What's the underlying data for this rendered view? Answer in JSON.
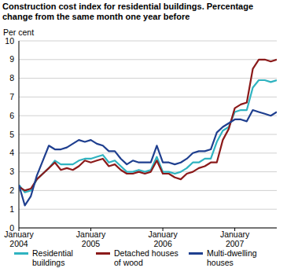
{
  "chart_data": {
    "type": "line",
    "title": "Construction cost index for residential buildings. Percentage change from the same month one year before",
    "y_label": "Per cent",
    "categories": [
      "January 2004",
      null,
      null,
      null,
      null,
      null,
      null,
      null,
      null,
      null,
      null,
      null,
      "January 2005",
      null,
      null,
      null,
      null,
      null,
      null,
      null,
      null,
      null,
      null,
      null,
      "January 2006",
      null,
      null,
      null,
      null,
      null,
      null,
      null,
      null,
      null,
      null,
      null,
      "January 2007",
      null,
      null,
      null,
      null,
      null,
      null,
      null
    ],
    "series": [
      {
        "name": "Residential buildings",
        "color": "#2fb3c0",
        "values": [
          2.3,
          1.9,
          2.0,
          2.6,
          2.9,
          3.2,
          3.6,
          3.4,
          3.4,
          3.4,
          3.6,
          3.7,
          3.7,
          3.8,
          3.9,
          3.5,
          3.6,
          3.3,
          3.0,
          3.0,
          3.1,
          3.0,
          3.1,
          3.8,
          3.0,
          3.0,
          2.9,
          3.0,
          3.2,
          3.5,
          3.5,
          3.7,
          3.7,
          4.6,
          5.2,
          5.4,
          6.2,
          6.3,
          6.3,
          7.5,
          7.9,
          7.9,
          7.8,
          7.9
        ]
      },
      {
        "name": "Detached houses of wood",
        "color": "#8b1a1a",
        "values": [
          2.2,
          2.0,
          2.1,
          2.6,
          2.9,
          3.2,
          3.5,
          3.1,
          3.2,
          3.1,
          3.3,
          3.6,
          3.5,
          3.6,
          3.7,
          3.3,
          3.4,
          3.1,
          2.9,
          2.9,
          3.0,
          2.9,
          3.0,
          3.6,
          2.9,
          2.9,
          2.7,
          2.6,
          2.9,
          3.0,
          3.2,
          3.3,
          3.5,
          3.5,
          4.7,
          5.3,
          6.4,
          6.6,
          6.7,
          8.5,
          9.0,
          9.0,
          8.9,
          9.0
        ]
      },
      {
        "name": "Multi-dwelling houses",
        "color": "#1f3f8f",
        "values": [
          2.3,
          1.2,
          1.7,
          2.8,
          3.6,
          4.4,
          4.2,
          4.2,
          4.3,
          4.5,
          4.7,
          4.6,
          4.7,
          4.5,
          4.4,
          4.1,
          4.1,
          3.7,
          3.4,
          3.6,
          3.5,
          3.5,
          3.5,
          4.4,
          3.5,
          3.5,
          3.4,
          3.5,
          3.7,
          4.0,
          4.1,
          4.1,
          4.2,
          5.1,
          5.4,
          5.6,
          5.8,
          5.8,
          5.7,
          6.3,
          6.2,
          6.1,
          6.0,
          6.2
        ]
      }
    ],
    "ylim": [
      0,
      10
    ],
    "yticks": [
      0,
      1,
      2,
      3,
      4,
      5,
      6,
      7,
      8,
      9,
      10
    ],
    "grid": true,
    "legend": "bottom"
  }
}
